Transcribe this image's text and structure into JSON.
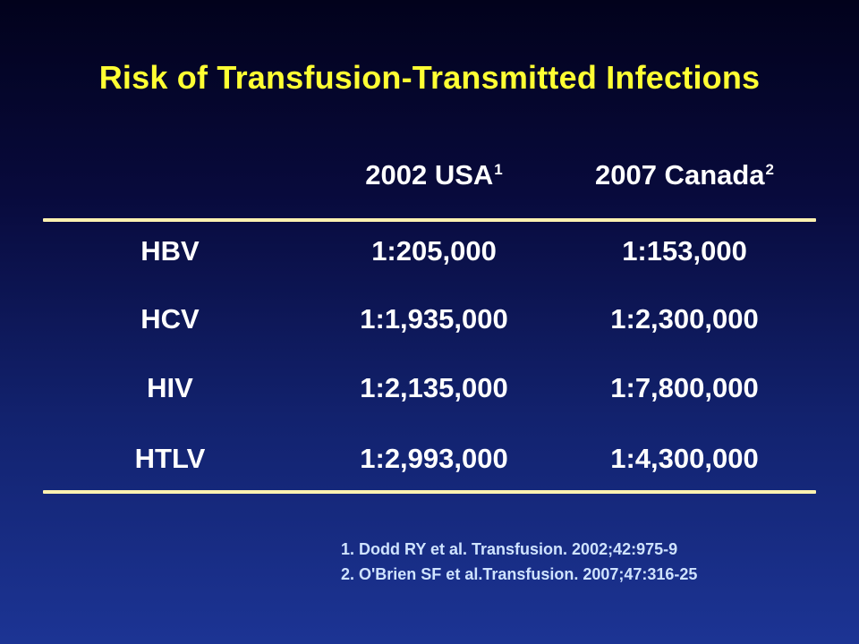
{
  "slide": {
    "title": "Risk of Transfusion-Transmitted Infections"
  },
  "table": {
    "columns": [
      {
        "label": "2002 USA",
        "ref": "1"
      },
      {
        "label": "2007 Canada",
        "ref": "2"
      }
    ],
    "rows": [
      {
        "label": "HBV",
        "usa_2002": "1:205,000",
        "canada_2007": "1:153,000"
      },
      {
        "label": "HCV",
        "usa_2002": "1:1,935,000",
        "canada_2007": "1:2,300,000"
      },
      {
        "label": "HIV",
        "usa_2002": "1:2,135,000",
        "canada_2007": "1:7,800,000"
      },
      {
        "label": "HTLV",
        "usa_2002": "1:2,993,000",
        "canada_2007": "1:4,300,000"
      }
    ]
  },
  "references": [
    "1. Dodd RY et al. Transfusion. 2002;42:975-9",
    "2. O'Brien SF et al.Transfusion. 2007;47:316-25"
  ],
  "colors": {
    "title": "#ffff33",
    "text": "#ffffff",
    "rule": "#fff2b0",
    "references": "#cfe3ff",
    "background_top": "#02021c",
    "background_bottom": "#1c3494"
  }
}
